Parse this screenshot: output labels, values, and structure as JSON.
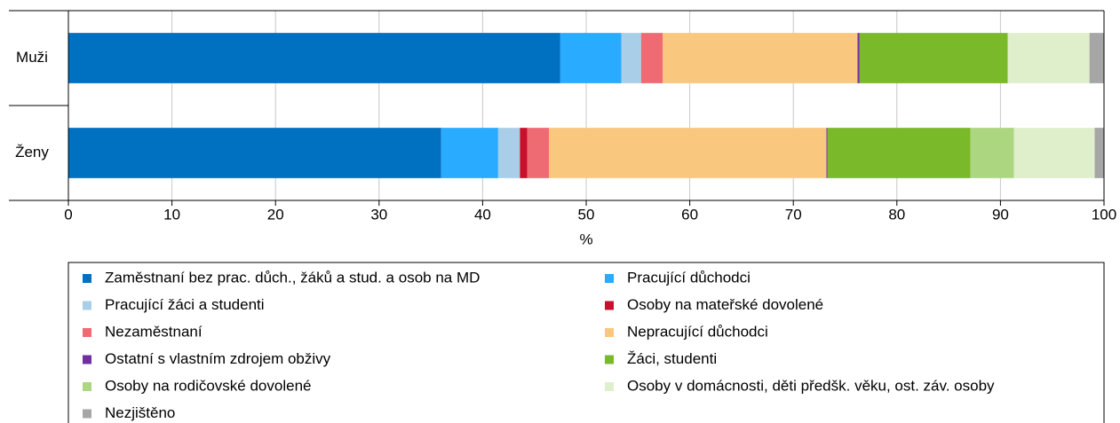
{
  "chart_data": {
    "type": "stacked-bar-horizontal",
    "xlabel": "%",
    "categories": [
      "Muži",
      "Ženy"
    ],
    "xlim": [
      0,
      100
    ],
    "xticks": [
      0,
      10,
      20,
      30,
      40,
      50,
      60,
      70,
      80,
      90,
      100
    ],
    "grid": true,
    "series": [
      {
        "name": "Zaměstnaní bez prac. důch., žáků a stud. a osob na MD",
        "color": "#0070c0",
        "values": [
          47.5,
          36.0
        ]
      },
      {
        "name": "Pracující důchodci",
        "color": "#29abff",
        "values": [
          5.9,
          5.5
        ]
      },
      {
        "name": "Pracující žáci a studenti",
        "color": "#a9cfe8",
        "values": [
          1.9,
          2.1
        ]
      },
      {
        "name": "Osoby na mateřské dovolené",
        "color": "#c8102e",
        "values": [
          0,
          0.7
        ]
      },
      {
        "name": "Nezaměstnaní",
        "color": "#ef6b73",
        "values": [
          2.1,
          2.1
        ]
      },
      {
        "name": "Nepracující důchodci",
        "color": "#f9c77e",
        "values": [
          18.8,
          26.8
        ]
      },
      {
        "name": "Ostatní s vlastním zdrojem obživy",
        "color": "#7030a0",
        "values": [
          0.2,
          0.1
        ]
      },
      {
        "name": "Žáci, studenti",
        "color": "#7ab929",
        "values": [
          14.3,
          13.8
        ]
      },
      {
        "name": "Osoby na rodičovské dovolené",
        "color": "#acd67f",
        "values": [
          0,
          4.2
        ]
      },
      {
        "name": "Osoby v domácnosti, děti předšk. věku, ost. záv. osoby",
        "color": "#e0efcb",
        "values": [
          7.9,
          7.8
        ]
      },
      {
        "name": "Nezjištěno",
        "color": "#a6a6a6",
        "values": [
          1.4,
          0.9
        ]
      }
    ]
  }
}
